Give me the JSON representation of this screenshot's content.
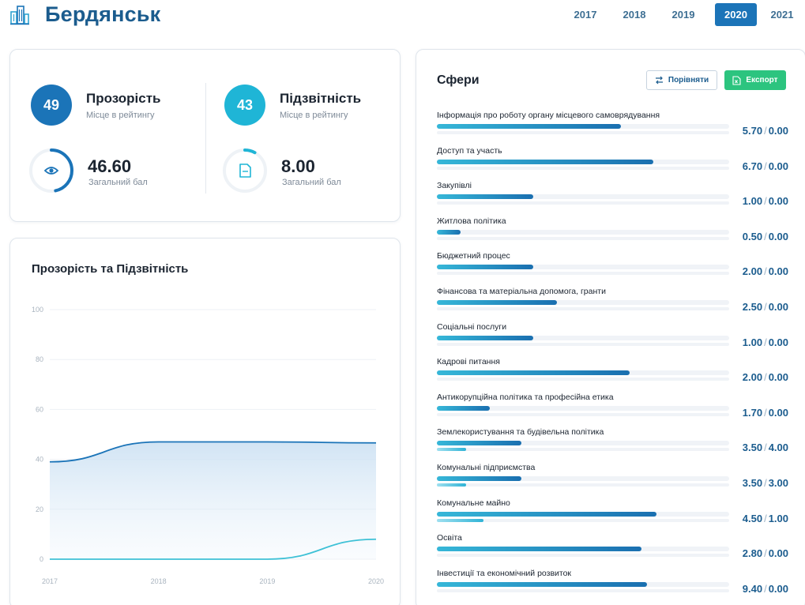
{
  "header": {
    "city": "Бердянськ",
    "years": [
      "2017",
      "2018",
      "2019",
      "2020",
      "2021"
    ],
    "active_year": "2020"
  },
  "summary": {
    "transparency": {
      "rank": "49",
      "title": "Прозорість",
      "rank_label": "Місце в рейтингу",
      "score": "46.60",
      "score_label": "Загальний бал",
      "score_fraction": 0.466,
      "color": "#1b74b8"
    },
    "accountability": {
      "rank": "43",
      "title": "Підзвітність",
      "rank_label": "Місце в рейтингу",
      "score": "8.00",
      "score_label": "Загальний бал",
      "score_fraction": 0.08,
      "color": "#1fb5d6"
    }
  },
  "chart_card": {
    "title": "Прозорість та Підзвітність"
  },
  "chart_data": {
    "type": "area",
    "x": [
      "2017",
      "2018",
      "2019",
      "2020"
    ],
    "ylim": [
      0,
      100
    ],
    "yticks": [
      "0",
      "20",
      "40",
      "60",
      "80",
      "100"
    ],
    "grid": true,
    "series": [
      {
        "values": [
          39,
          47,
          47,
          46.6
        ],
        "color": "#1b74b8",
        "fill": true
      },
      {
        "values": [
          0,
          0,
          0,
          8
        ],
        "color": "#3ec1d6",
        "fill": false
      }
    ]
  },
  "spheres": {
    "title": "Сфери",
    "compare_label": "Порівняти",
    "export_label": "Експорт",
    "rows": [
      {
        "label": "Інформація про роботу органу місцевого самоврядування",
        "v1": "5.70",
        "v2": "0.00",
        "f1": 0.63,
        "f2": 0
      },
      {
        "label": "Доступ та участь",
        "v1": "6.70",
        "v2": "0.00",
        "f1": 0.74,
        "f2": 0
      },
      {
        "label": "Закупівлі",
        "v1": "1.00",
        "v2": "0.00",
        "f1": 0.33,
        "f2": 0
      },
      {
        "label": "Житлова політика",
        "v1": "0.50",
        "v2": "0.00",
        "f1": 0.08,
        "f2": 0
      },
      {
        "label": "Бюджетний процес",
        "v1": "2.00",
        "v2": "0.00",
        "f1": 0.33,
        "f2": 0
      },
      {
        "label": "Фінансова та матеріальна допомога, гранти",
        "v1": "2.50",
        "v2": "0.00",
        "f1": 0.41,
        "f2": 0
      },
      {
        "label": "Соціальні послуги",
        "v1": "1.00",
        "v2": "0.00",
        "f1": 0.33,
        "f2": 0
      },
      {
        "label": "Кадрові питання",
        "v1": "2.00",
        "v2": "0.00",
        "f1": 0.66,
        "f2": 0
      },
      {
        "label": "Антикорупційна політика та професійна етика",
        "v1": "1.70",
        "v2": "0.00",
        "f1": 0.18,
        "f2": 0
      },
      {
        "label": "Землекористування та будівельна політика",
        "v1": "3.50",
        "v2": "4.00",
        "f1": 0.29,
        "f2": 0.1
      },
      {
        "label": "Комунальні підприємства",
        "v1": "3.50",
        "v2": "3.00",
        "f1": 0.29,
        "f2": 0.1
      },
      {
        "label": "Комунальне майно",
        "v1": "4.50",
        "v2": "1.00",
        "f1": 0.75,
        "f2": 0.16
      },
      {
        "label": "Освіта",
        "v1": "2.80",
        "v2": "0.00",
        "f1": 0.7,
        "f2": 0
      },
      {
        "label": "Інвестиції та економічний розвиток",
        "v1": "9.40",
        "v2": "0.00",
        "f1": 0.72,
        "f2": 0
      }
    ]
  }
}
